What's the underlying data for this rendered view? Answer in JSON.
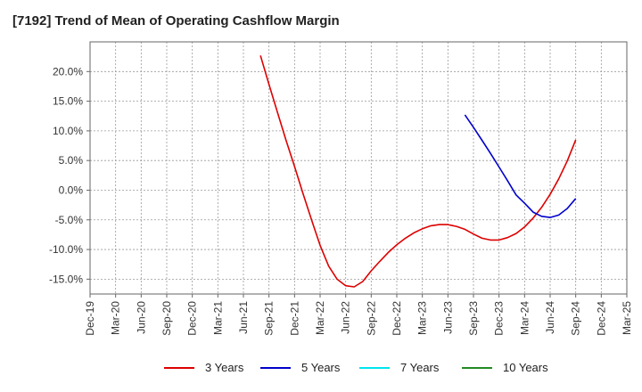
{
  "title": "[7192]  Trend of Mean of Operating Cashflow Margin",
  "chart_data": {
    "type": "line",
    "title": "[7192]  Trend of Mean of Operating Cashflow Margin",
    "xlabel": "",
    "ylabel": "",
    "x_ticks": [
      "Dec-19",
      "Mar-20",
      "Jun-20",
      "Sep-20",
      "Dec-20",
      "Mar-21",
      "Jun-21",
      "Sep-21",
      "Dec-21",
      "Mar-22",
      "Jun-22",
      "Sep-22",
      "Dec-22",
      "Mar-23",
      "Jun-23",
      "Sep-23",
      "Dec-23",
      "Mar-24",
      "Jun-24",
      "Sep-24",
      "Dec-24",
      "Mar-25"
    ],
    "y_ticks": [
      "20.0%",
      "15.0%",
      "10.0%",
      "5.0%",
      "0.0%",
      "-5.0%",
      "-10.0%",
      "-15.0%"
    ],
    "y_tick_values": [
      20,
      15,
      10,
      5,
      0,
      -5,
      -10,
      -15
    ],
    "ylim": [
      -17.5,
      25
    ],
    "grid": true,
    "legend_position": "bottom",
    "series": [
      {
        "name": "3 Years",
        "color": "#dd0000",
        "points": [
          [
            "Aug-21",
            22.7
          ],
          [
            "Sep-21",
            17.8
          ],
          [
            "Oct-21",
            13.1
          ],
          [
            "Nov-21",
            8.4
          ],
          [
            "Dec-21",
            4.0
          ],
          [
            "Jan-22",
            -0.6
          ],
          [
            "Feb-22",
            -5.0
          ],
          [
            "Mar-22",
            -9.3
          ],
          [
            "Apr-22",
            -12.8
          ],
          [
            "May-22",
            -15.0
          ],
          [
            "Jun-22",
            -16.1
          ],
          [
            "Jul-22",
            -16.3
          ],
          [
            "Aug-22",
            -15.4
          ],
          [
            "Sep-22",
            -13.6
          ],
          [
            "Oct-22",
            -12.0
          ],
          [
            "Nov-22",
            -10.5
          ],
          [
            "Dec-22",
            -9.2
          ],
          [
            "Jan-23",
            -8.1
          ],
          [
            "Feb-23",
            -7.2
          ],
          [
            "Mar-23",
            -6.5
          ],
          [
            "Apr-23",
            -6.0
          ],
          [
            "May-23",
            -5.8
          ],
          [
            "Jun-23",
            -5.8
          ],
          [
            "Jul-23",
            -6.1
          ],
          [
            "Aug-23",
            -6.6
          ],
          [
            "Sep-23",
            -7.4
          ],
          [
            "Oct-23",
            -8.1
          ],
          [
            "Nov-23",
            -8.4
          ],
          [
            "Dec-23",
            -8.4
          ],
          [
            "Jan-24",
            -8.0
          ],
          [
            "Feb-24",
            -7.3
          ],
          [
            "Mar-24",
            -6.2
          ],
          [
            "Apr-24",
            -4.7
          ],
          [
            "May-24",
            -2.9
          ],
          [
            "Jun-24",
            -0.7
          ],
          [
            "Jul-24",
            1.9
          ],
          [
            "Aug-24",
            4.9
          ],
          [
            "Sep-24",
            8.5
          ]
        ]
      },
      {
        "name": "5 Years",
        "color": "#0000cc",
        "points": [
          [
            "Aug-23",
            12.7
          ],
          [
            "Sep-23",
            10.6
          ],
          [
            "Oct-23",
            8.4
          ],
          [
            "Nov-23",
            6.2
          ],
          [
            "Dec-23",
            3.9
          ],
          [
            "Jan-24",
            1.6
          ],
          [
            "Feb-24",
            -0.8
          ],
          [
            "Mar-24",
            -2.2
          ],
          [
            "Apr-24",
            -3.7
          ],
          [
            "May-24",
            -4.4
          ],
          [
            "Jun-24",
            -4.6
          ],
          [
            "Jul-24",
            -4.2
          ],
          [
            "Aug-24",
            -3.1
          ],
          [
            "Sep-24",
            -1.4
          ]
        ]
      },
      {
        "name": "7 Years",
        "color": "#00e5ee",
        "points": []
      },
      {
        "name": "10 Years",
        "color": "#228b22",
        "points": []
      }
    ]
  }
}
